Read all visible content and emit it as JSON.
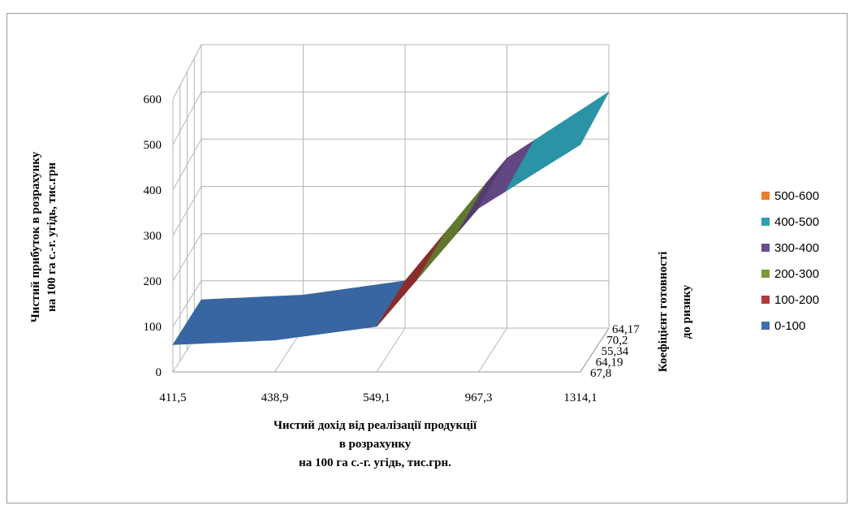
{
  "chart_data": {
    "type": "3d-surface",
    "x": {
      "label_lines": [
        "Чистий дохід від реалізації продукції",
        "в розрахунку",
        "на 100 га с.-г. угідь, тис.грн."
      ],
      "categories": [
        "411,5",
        "438,9",
        "549,1",
        "967,3",
        "1314,1"
      ]
    },
    "y": {
      "label_lines": [
        "Чистий прибуток в розрахунку",
        "на 100 га с.-г. угідь, тис.грн"
      ],
      "ticks": [
        0,
        100,
        200,
        300,
        400,
        500,
        600
      ],
      "ylim": [
        0,
        600
      ]
    },
    "z": {
      "label_lines": [
        "Коефіцієнт готовності",
        "до ризику"
      ],
      "categories": [
        "67,8",
        "64,19",
        "55,34",
        "70,2",
        "64,17"
      ]
    },
    "surface_profile": [
      {
        "x": "411,5",
        "value": 60
      },
      {
        "x": "438,9",
        "value": 70
      },
      {
        "x": "549,1",
        "value": 100
      },
      {
        "x": "967,3",
        "value": 360
      },
      {
        "x": "1314,1",
        "value": 500
      }
    ],
    "legend": {
      "position": "right",
      "items": [
        {
          "label": "500-600",
          "color": "#e87f2e"
        },
        {
          "label": "400-500",
          "color": "#2fa0b4"
        },
        {
          "label": "300-400",
          "color": "#6b4d8e"
        },
        {
          "label": "200-300",
          "color": "#7a9a3a"
        },
        {
          "label": "100-200",
          "color": "#b13a3a"
        },
        {
          "label": "0-100",
          "color": "#3d6fb0"
        }
      ]
    }
  }
}
